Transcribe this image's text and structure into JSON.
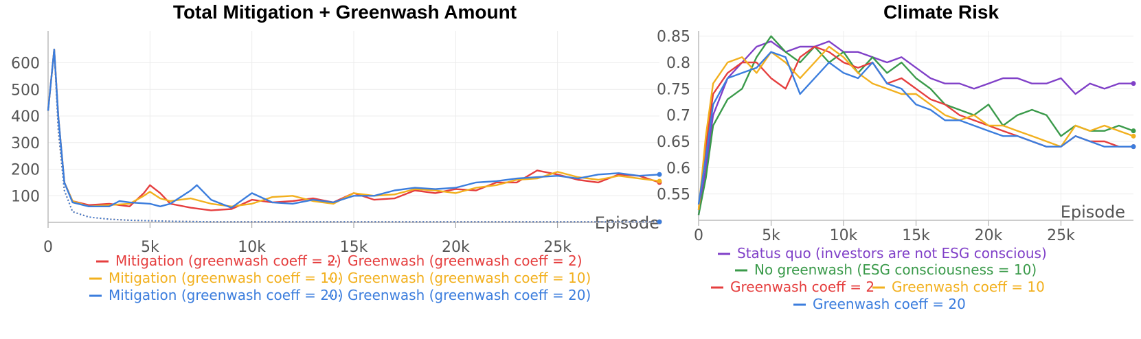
{
  "colors": {
    "red": "#e53e3e",
    "yellow": "#f2b01e",
    "blue": "#3b7ddd",
    "green": "#3a9a4a",
    "purple": "#8040c8"
  },
  "chart_data": [
    {
      "type": "line",
      "title": "Total Mitigation + Greenwash Amount",
      "xlabel": "Episode",
      "ylabel": "",
      "xlim": [
        0,
        30000
      ],
      "ylim": [
        0,
        720
      ],
      "x_ticks": [
        0,
        5000,
        10000,
        15000,
        20000,
        25000
      ],
      "x_tick_labels": [
        "0",
        "5k",
        "10k",
        "15k",
        "20k",
        "25k"
      ],
      "y_ticks": [
        100,
        200,
        300,
        400,
        500,
        600
      ],
      "y_tick_labels": [
        "100",
        "200",
        "300",
        "400",
        "500",
        "600"
      ],
      "grid": true,
      "legend_position": "bottom",
      "series": [
        {
          "name": "Mitigation (greenwash coeff = 2)",
          "color": "red",
          "style": "solid",
          "x": [
            0,
            300,
            500,
            800,
            1200,
            2000,
            3000,
            4000,
            4700,
            5000,
            5500,
            6000,
            7000,
            8000,
            9000,
            10000,
            11000,
            12000,
            13000,
            14000,
            15000,
            16000,
            17000,
            18000,
            19000,
            20000,
            21000,
            22000,
            23000,
            24000,
            25000,
            26000,
            27000,
            28000,
            29000,
            30000
          ],
          "y": [
            420,
            650,
            400,
            150,
            80,
            65,
            70,
            60,
            110,
            140,
            110,
            70,
            55,
            45,
            50,
            85,
            75,
            80,
            90,
            75,
            110,
            85,
            90,
            120,
            110,
            125,
            120,
            150,
            150,
            195,
            180,
            160,
            150,
            180,
            175,
            150
          ]
        },
        {
          "name": "Greenwash (greenwash coeff = 2)",
          "color": "red",
          "style": "dotted",
          "x": [
            0,
            300,
            500,
            800,
            1200,
            2000,
            3000,
            4000,
            6000,
            8000,
            10000,
            15000,
            20000,
            25000,
            30000
          ],
          "y": [
            420,
            650,
            350,
            120,
            40,
            20,
            12,
            8,
            4,
            2,
            2,
            2,
            2,
            2,
            2
          ]
        },
        {
          "name": "Mitigation (greenwash coeff = 10)",
          "color": "yellow",
          "style": "solid",
          "x": [
            0,
            300,
            500,
            800,
            1200,
            2000,
            3000,
            4000,
            4700,
            5000,
            5500,
            6000,
            7000,
            8000,
            9000,
            10000,
            11000,
            12000,
            13000,
            14000,
            15000,
            16000,
            17000,
            18000,
            19000,
            20000,
            21000,
            22000,
            23000,
            24000,
            25000,
            26000,
            27000,
            28000,
            29000,
            30000
          ],
          "y": [
            420,
            650,
            400,
            150,
            80,
            60,
            65,
            70,
            100,
            115,
            90,
            80,
            90,
            70,
            60,
            70,
            95,
            100,
            80,
            70,
            110,
            100,
            105,
            125,
            120,
            110,
            130,
            140,
            160,
            165,
            190,
            170,
            160,
            175,
            165,
            155
          ]
        },
        {
          "name": "Greenwash (greenwash coeff = 10)",
          "color": "yellow",
          "style": "dotted",
          "x": [
            0,
            300,
            500,
            800,
            1200,
            2000,
            3000,
            4000,
            6000,
            8000,
            10000,
            15000,
            20000,
            25000,
            30000
          ],
          "y": [
            420,
            650,
            350,
            120,
            40,
            20,
            12,
            8,
            4,
            2,
            2,
            2,
            2,
            2,
            2
          ]
        },
        {
          "name": "Mitigation (greenwash coeff = 20)",
          "color": "blue",
          "style": "solid",
          "x": [
            0,
            300,
            500,
            800,
            1200,
            2000,
            3000,
            3500,
            4000,
            5000,
            5500,
            6000,
            7000,
            7300,
            8000,
            9000,
            10000,
            11000,
            12000,
            13000,
            14000,
            15000,
            16000,
            17000,
            18000,
            19000,
            20000,
            21000,
            22000,
            23000,
            24000,
            25000,
            26000,
            27000,
            28000,
            29000,
            30000
          ],
          "y": [
            420,
            650,
            400,
            150,
            75,
            60,
            60,
            80,
            75,
            70,
            60,
            70,
            120,
            140,
            85,
            55,
            110,
            75,
            70,
            85,
            75,
            100,
            100,
            120,
            130,
            125,
            130,
            150,
            155,
            165,
            170,
            175,
            165,
            180,
            185,
            175,
            180
          ]
        },
        {
          "name": "Greenwash (greenwash coeff = 20)",
          "color": "blue",
          "style": "dotted",
          "x": [
            0,
            300,
            500,
            800,
            1200,
            2000,
            3000,
            4000,
            6000,
            8000,
            10000,
            15000,
            20000,
            25000,
            30000
          ],
          "y": [
            420,
            650,
            350,
            120,
            40,
            20,
            12,
            8,
            4,
            2,
            2,
            2,
            2,
            2,
            2
          ]
        }
      ],
      "legend": [
        {
          "label": "Mitigation (greenwash coeff = 2)",
          "color": "red",
          "style": "solid"
        },
        {
          "label": "Greenwash (greenwash coeff = 2)",
          "color": "red",
          "style": "dotted"
        },
        {
          "label": "Mitigation (greenwash coeff = 10)",
          "color": "yellow",
          "style": "solid"
        },
        {
          "label": "Greenwash (greenwash coeff = 10)",
          "color": "yellow",
          "style": "dotted"
        },
        {
          "label": "Mitigation (greenwash coeff = 20)",
          "color": "blue",
          "style": "solid"
        },
        {
          "label": "Greenwash (greenwash coeff = 20)",
          "color": "blue",
          "style": "dotted"
        }
      ]
    },
    {
      "type": "line",
      "title": "Climate Risk",
      "xlabel": "Episode",
      "ylabel": "",
      "xlim": [
        0,
        30000
      ],
      "ylim": [
        0.5,
        0.86
      ],
      "x_ticks": [
        0,
        5000,
        10000,
        15000,
        20000,
        25000
      ],
      "x_tick_labels": [
        "0",
        "5k",
        "10k",
        "15k",
        "20k",
        "25k"
      ],
      "y_ticks": [
        0.55,
        0.6,
        0.65,
        0.7,
        0.75,
        0.8,
        0.85
      ],
      "y_tick_labels": [
        "0.55",
        "0.6",
        "0.65",
        "0.7",
        "0.75",
        "0.8",
        "0.85"
      ],
      "grid": true,
      "legend_position": "bottom",
      "series": [
        {
          "name": "Status quo (investors are not ESG conscious)",
          "color": "purple",
          "x": [
            0,
            500,
            1000,
            2000,
            3000,
            4000,
            5000,
            6000,
            7000,
            8000,
            9000,
            10000,
            11000,
            12000,
            13000,
            14000,
            15000,
            16000,
            17000,
            18000,
            19000,
            20000,
            21000,
            22000,
            23000,
            24000,
            25000,
            26000,
            27000,
            28000,
            29000,
            30000
          ],
          "y": [
            0.51,
            0.6,
            0.7,
            0.77,
            0.8,
            0.83,
            0.84,
            0.82,
            0.83,
            0.83,
            0.84,
            0.82,
            0.82,
            0.81,
            0.8,
            0.81,
            0.79,
            0.77,
            0.76,
            0.76,
            0.75,
            0.76,
            0.77,
            0.77,
            0.76,
            0.76,
            0.77,
            0.74,
            0.76,
            0.75,
            0.76,
            0.76
          ]
        },
        {
          "name": "No greenwash (ESG consciousness = 10)",
          "color": "green",
          "x": [
            0,
            500,
            1000,
            2000,
            3000,
            4000,
            5000,
            6000,
            7000,
            8000,
            9000,
            10000,
            11000,
            12000,
            13000,
            14000,
            15000,
            16000,
            17000,
            18000,
            19000,
            20000,
            21000,
            22000,
            23000,
            24000,
            25000,
            26000,
            27000,
            28000,
            29000,
            30000
          ],
          "y": [
            0.51,
            0.58,
            0.68,
            0.73,
            0.75,
            0.81,
            0.85,
            0.82,
            0.8,
            0.83,
            0.8,
            0.82,
            0.78,
            0.81,
            0.78,
            0.8,
            0.77,
            0.75,
            0.72,
            0.71,
            0.7,
            0.72,
            0.68,
            0.7,
            0.71,
            0.7,
            0.66,
            0.68,
            0.67,
            0.67,
            0.68,
            0.67
          ]
        },
        {
          "name": "Greenwash coeff = 2",
          "color": "red",
          "x": [
            0,
            500,
            1000,
            2000,
            3000,
            4000,
            5000,
            6000,
            7000,
            8000,
            9000,
            10000,
            11000,
            12000,
            13000,
            14000,
            15000,
            16000,
            17000,
            18000,
            19000,
            20000,
            21000,
            22000,
            23000,
            24000,
            25000,
            26000,
            27000,
            28000,
            29000,
            30000
          ],
          "y": [
            0.52,
            0.64,
            0.74,
            0.78,
            0.8,
            0.8,
            0.77,
            0.75,
            0.81,
            0.83,
            0.82,
            0.8,
            0.79,
            0.8,
            0.76,
            0.77,
            0.75,
            0.73,
            0.72,
            0.7,
            0.69,
            0.68,
            0.67,
            0.66,
            0.65,
            0.64,
            0.64,
            0.66,
            0.65,
            0.65,
            0.64,
            0.64
          ]
        },
        {
          "name": "Greenwash coeff = 10",
          "color": "yellow",
          "x": [
            0,
            500,
            1000,
            2000,
            3000,
            4000,
            5000,
            6000,
            7000,
            8000,
            9000,
            10000,
            11000,
            12000,
            13000,
            14000,
            15000,
            16000,
            17000,
            18000,
            19000,
            20000,
            21000,
            22000,
            23000,
            24000,
            25000,
            26000,
            27000,
            28000,
            29000,
            30000
          ],
          "y": [
            0.52,
            0.66,
            0.76,
            0.8,
            0.81,
            0.78,
            0.82,
            0.8,
            0.77,
            0.8,
            0.83,
            0.81,
            0.78,
            0.76,
            0.75,
            0.74,
            0.74,
            0.72,
            0.7,
            0.69,
            0.7,
            0.68,
            0.68,
            0.67,
            0.66,
            0.65,
            0.64,
            0.68,
            0.67,
            0.68,
            0.67,
            0.66
          ]
        },
        {
          "name": "Greenwash coeff = 20",
          "color": "blue",
          "x": [
            0,
            500,
            1000,
            2000,
            3000,
            4000,
            5000,
            6000,
            7000,
            8000,
            9000,
            10000,
            11000,
            12000,
            13000,
            14000,
            15000,
            16000,
            17000,
            18000,
            19000,
            20000,
            21000,
            22000,
            23000,
            24000,
            25000,
            26000,
            27000,
            28000,
            29000,
            30000
          ],
          "y": [
            0.53,
            0.62,
            0.72,
            0.77,
            0.78,
            0.79,
            0.82,
            0.81,
            0.74,
            0.77,
            0.8,
            0.78,
            0.77,
            0.8,
            0.76,
            0.75,
            0.72,
            0.71,
            0.69,
            0.69,
            0.68,
            0.67,
            0.66,
            0.66,
            0.65,
            0.64,
            0.64,
            0.66,
            0.65,
            0.64,
            0.64,
            0.64
          ]
        }
      ],
      "legend": [
        {
          "label": "Status quo (investors are not ESG conscious)",
          "color": "purple",
          "style": "solid"
        },
        {
          "label": "No greenwash (ESG consciousness = 10)",
          "color": "green",
          "style": "solid"
        },
        {
          "label": "Greenwash coeff = 2",
          "color": "red",
          "style": "solid"
        },
        {
          "label": "Greenwash coeff = 10",
          "color": "yellow",
          "style": "solid"
        },
        {
          "label": "Greenwash coeff = 20",
          "color": "blue",
          "style": "solid"
        }
      ]
    }
  ]
}
